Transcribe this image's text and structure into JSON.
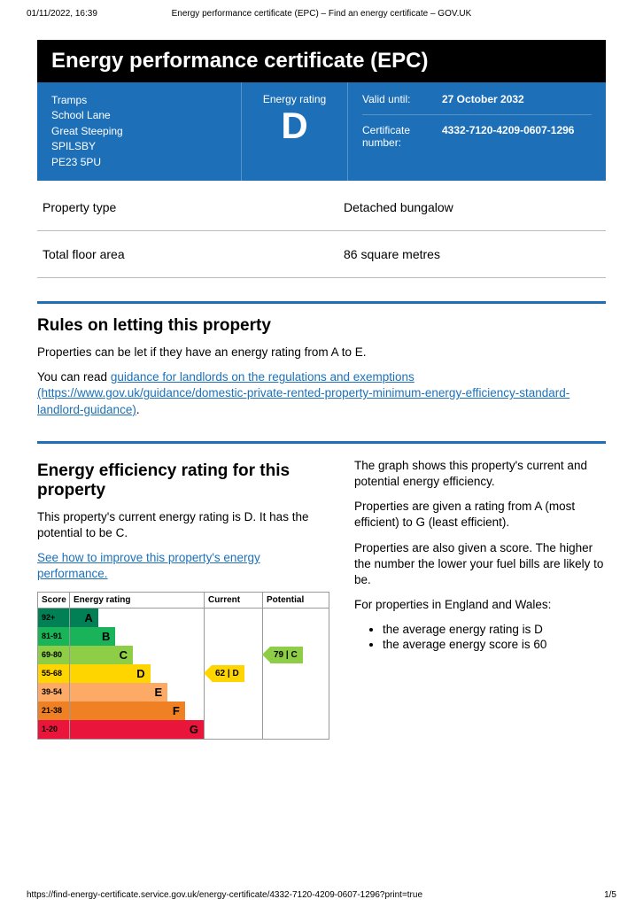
{
  "printHeader": {
    "datetime": "01/11/2022, 16:39",
    "title": "Energy performance certificate (EPC) – Find an energy certificate – GOV.UK"
  },
  "pageTitle": "Energy performance certificate (EPC)",
  "address": {
    "line1": "Tramps",
    "line2": "School Lane",
    "line3": "Great Steeping",
    "line4": "SPILSBY",
    "line5": "PE23 5PU"
  },
  "ratingPanel": {
    "label": "Energy rating",
    "rating": "D"
  },
  "validity": {
    "validLabel": "Valid until:",
    "validValue": "27 October 2032",
    "certLabel": "Certificate number:",
    "certValue": "4332-7120-4209-0607-1296"
  },
  "propRows": [
    {
      "k": "Property type",
      "v": "Detached bungalow"
    },
    {
      "k": "Total floor area",
      "v": "86 square metres"
    }
  ],
  "rules": {
    "heading": "Rules on letting this property",
    "p1": "Properties can be let if they have an energy rating from A to E.",
    "p2a": "You can read ",
    "linkText": "guidance for landlords on the regulations and exemptions (https://www.gov.uk/guidance/domestic-private-rented-property-minimum-energy-efficiency-standard-landlord-guidance)",
    "p2b": "."
  },
  "eff": {
    "heading": "Energy efficiency rating for this property",
    "p1": "This property's current energy rating is D. It has the potential to be C.",
    "linkText": "See how to improve this property's energy performance."
  },
  "right": {
    "p1": "The graph shows this property's current and potential energy efficiency.",
    "p2": "Properties are given a rating from A (most efficient) to G (least efficient).",
    "p3": "Properties are also given a score. The higher the number the lower your fuel bills are likely to be.",
    "p4": "For properties in England and Wales:",
    "li1": "the average energy rating is D",
    "li2": "the average energy score is 60"
  },
  "chart": {
    "headers": {
      "score": "Score",
      "rating": "Energy rating",
      "current": "Current",
      "potential": "Potential"
    },
    "bands": [
      {
        "range": "92+",
        "letter": "A",
        "color": "#008054",
        "widthPct": 21
      },
      {
        "range": "81-91",
        "letter": "B",
        "color": "#19b459",
        "widthPct": 34
      },
      {
        "range": "69-80",
        "letter": "C",
        "color": "#8dce46",
        "widthPct": 47
      },
      {
        "range": "55-68",
        "letter": "D",
        "color": "#ffd500",
        "widthPct": 60
      },
      {
        "range": "39-54",
        "letter": "E",
        "color": "#fcaa65",
        "widthPct": 73
      },
      {
        "range": "21-38",
        "letter": "F",
        "color": "#ef8023",
        "widthPct": 86
      },
      {
        "range": "1-20",
        "letter": "G",
        "color": "#e9153b",
        "widthPct": 100
      }
    ],
    "current": {
      "bandIndex": 3,
      "label": "62 | D",
      "color": "#ffd500"
    },
    "potential": {
      "bandIndex": 2,
      "label": "79 | C",
      "color": "#8dce46"
    }
  },
  "footer": {
    "url": "https://find-energy-certificate.service.gov.uk/energy-certificate/4332-7120-4209-0607-1296?print=true",
    "page": "1/5"
  },
  "colors": {
    "brand": "#1d70b8"
  }
}
